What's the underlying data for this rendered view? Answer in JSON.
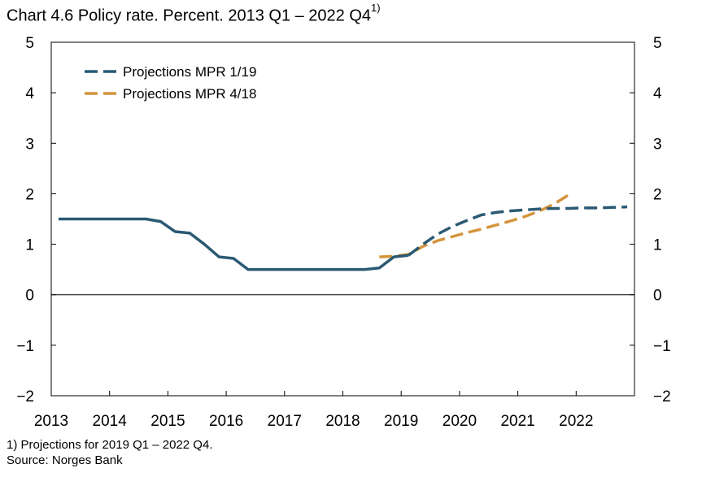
{
  "title": {
    "text": "Chart 4.6 Policy rate. Percent. 2013 Q1 – 2022 Q4",
    "sup": "1)"
  },
  "footnotes": {
    "note": "1) Projections for 2019 Q1 – 2022 Q4.",
    "source": "Source: Norges Bank"
  },
  "chart_data": {
    "type": "line",
    "title": "Chart 4.6 Policy rate. Percent. 2013 Q1 – 2022 Q4",
    "ylim": [
      -2,
      5
    ],
    "yticks": [
      -2,
      -1,
      0,
      1,
      2,
      3,
      4,
      5
    ],
    "ytick_labels": [
      "−2",
      "−1",
      "0",
      "1",
      "2",
      "3",
      "4",
      "5"
    ],
    "xlim": [
      2013.0,
      2023.0
    ],
    "xticks": [
      "2013",
      "2014",
      "2015",
      "2016",
      "2017",
      "2018",
      "2019",
      "2020",
      "2021",
      "2022"
    ],
    "grid": false,
    "zero_line": true,
    "right_axis_mirror": true,
    "legend_position": "top-left",
    "series": [
      {
        "name": "Policy rate",
        "style": "solid",
        "color": "#2a5a73",
        "x": [
          "2013 Q1",
          "2013 Q2",
          "2013 Q3",
          "2013 Q4",
          "2014 Q1",
          "2014 Q2",
          "2014 Q3",
          "2014 Q4",
          "2015 Q1",
          "2015 Q2",
          "2015 Q3",
          "2015 Q4",
          "2016 Q1",
          "2016 Q2",
          "2016 Q3",
          "2016 Q4",
          "2017 Q1",
          "2017 Q2",
          "2017 Q3",
          "2017 Q4",
          "2018 Q1",
          "2018 Q2",
          "2018 Q3",
          "2018 Q4",
          "2019 Q1"
        ],
        "values": [
          1.5,
          1.5,
          1.5,
          1.5,
          1.5,
          1.5,
          1.5,
          1.45,
          1.25,
          1.22,
          1.0,
          0.75,
          0.72,
          0.5,
          0.5,
          0.5,
          0.5,
          0.5,
          0.5,
          0.5,
          0.5,
          0.5,
          0.53,
          0.75,
          0.78
        ]
      },
      {
        "name": "Projections MPR 1/19",
        "style": "dashed",
        "color": "#2a5a73",
        "x": [
          "2019 Q1",
          "2019 Q2",
          "2019 Q3",
          "2019 Q4",
          "2020 Q1",
          "2020 Q2",
          "2020 Q3",
          "2020 Q4",
          "2021 Q1",
          "2021 Q2",
          "2021 Q3",
          "2021 Q4",
          "2022 Q1",
          "2022 Q2",
          "2022 Q3",
          "2022 Q4"
        ],
        "values": [
          0.78,
          1.0,
          1.2,
          1.35,
          1.47,
          1.58,
          1.63,
          1.66,
          1.68,
          1.7,
          1.71,
          1.71,
          1.72,
          1.72,
          1.73,
          1.74
        ]
      },
      {
        "name": "Projections MPR 4/18",
        "style": "dashed",
        "color": "#d4943c",
        "x": [
          "2018 Q3",
          "2018 Q4",
          "2019 Q1",
          "2019 Q2",
          "2019 Q3",
          "2019 Q4",
          "2020 Q1",
          "2020 Q2",
          "2020 Q3",
          "2020 Q4",
          "2021 Q1",
          "2021 Q2",
          "2021 Q3",
          "2021 Q4"
        ],
        "values": [
          0.75,
          0.76,
          0.8,
          0.96,
          1.07,
          1.15,
          1.23,
          1.3,
          1.38,
          1.46,
          1.55,
          1.66,
          1.8,
          1.98
        ]
      }
    ]
  }
}
